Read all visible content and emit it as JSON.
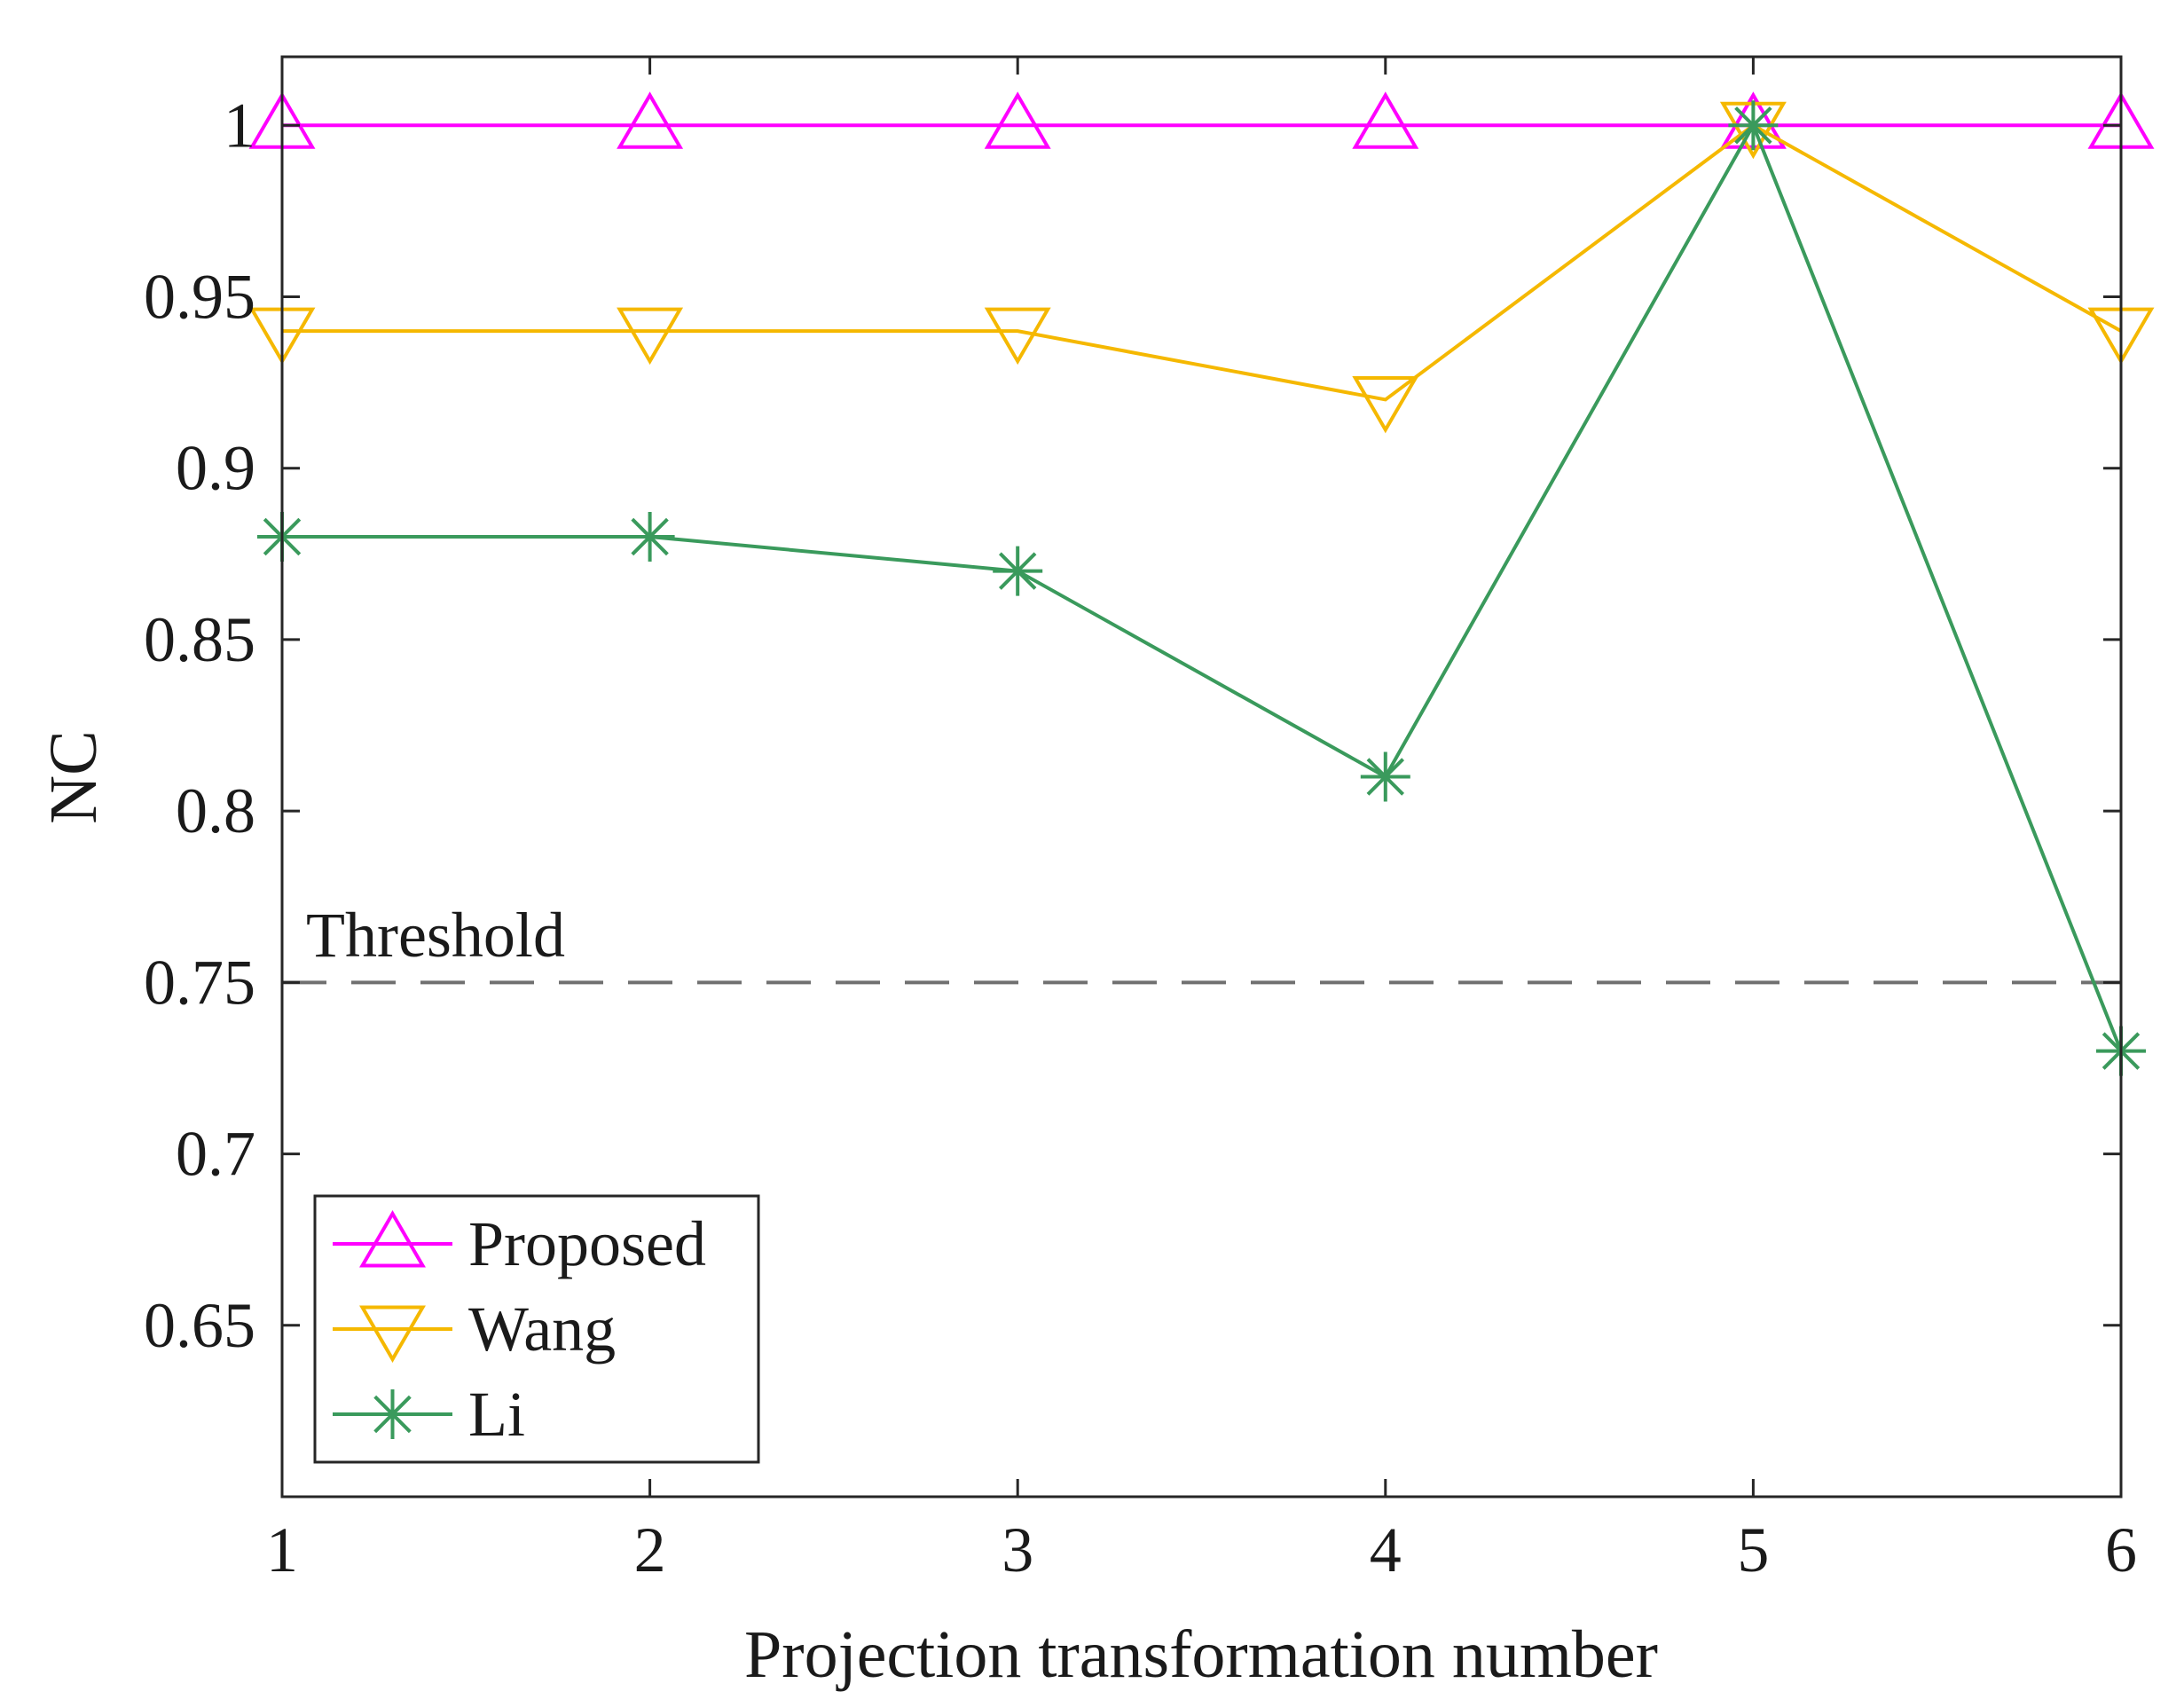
{
  "chart_data": {
    "type": "line",
    "title": "",
    "xlabel": "Projection transformation number",
    "ylabel": "NC",
    "x": [
      1,
      2,
      3,
      4,
      5,
      6
    ],
    "xlim": [
      1,
      6
    ],
    "ylim": [
      0.6,
      1.02
    ],
    "xticks": [
      1,
      2,
      3,
      4,
      5,
      6
    ],
    "yticks": [
      0.65,
      0.7,
      0.75,
      0.8,
      0.85,
      0.9,
      0.95,
      1
    ],
    "ytick_labels": [
      "0.65",
      "0.7",
      "0.75",
      "0.8",
      "0.85",
      "0.9",
      "0.95",
      "1"
    ],
    "grid": false,
    "legend_position": "bottom-left",
    "series": [
      {
        "name": "Proposed",
        "values": [
          1,
          1,
          1,
          1,
          1,
          1
        ],
        "color": "#ff00ff",
        "marker": "triangle-up"
      },
      {
        "name": "Wang",
        "values": [
          0.94,
          0.94,
          0.94,
          0.92,
          1,
          0.94
        ],
        "color": "#f5b800",
        "marker": "triangle-down"
      },
      {
        "name": "Li",
        "values": [
          0.88,
          0.88,
          0.87,
          0.81,
          1,
          0.73
        ],
        "color": "#3a9a5c",
        "marker": "asterisk"
      }
    ],
    "threshold": {
      "label": "Threshold",
      "value": 0.75,
      "color": "#707070"
    }
  }
}
